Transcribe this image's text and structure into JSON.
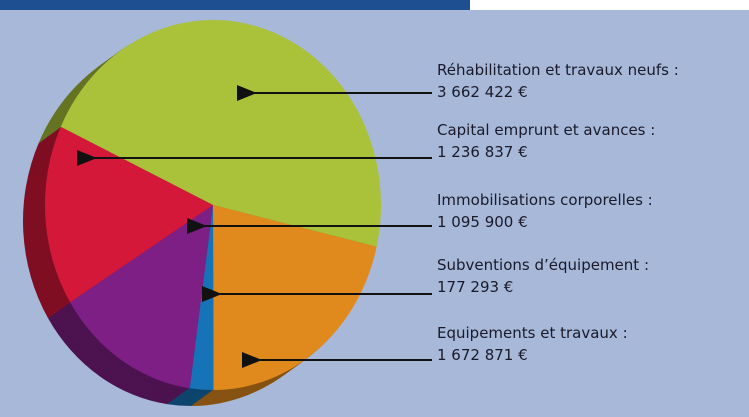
{
  "chart_data": {
    "type": "pie",
    "categories": [
      "Réhabilitation et travaux neufs :",
      "Equipements et travaux :",
      "Subventions d’équipement :",
      "Immobilisations corporelles :",
      "Capital emprunt et avances :"
    ],
    "values": [
      3662422,
      1672871,
      177293,
      1095900,
      1236837
    ],
    "value_labels": [
      "3 662 422 €",
      "1 672 871 €",
      "177 293 €",
      "1 095 900 €",
      "1 236 837 €"
    ],
    "colors": [
      "#a9c23a",
      "#e08a1e",
      "#1673b8",
      "#7e1f86",
      "#d4183a"
    ]
  }
}
